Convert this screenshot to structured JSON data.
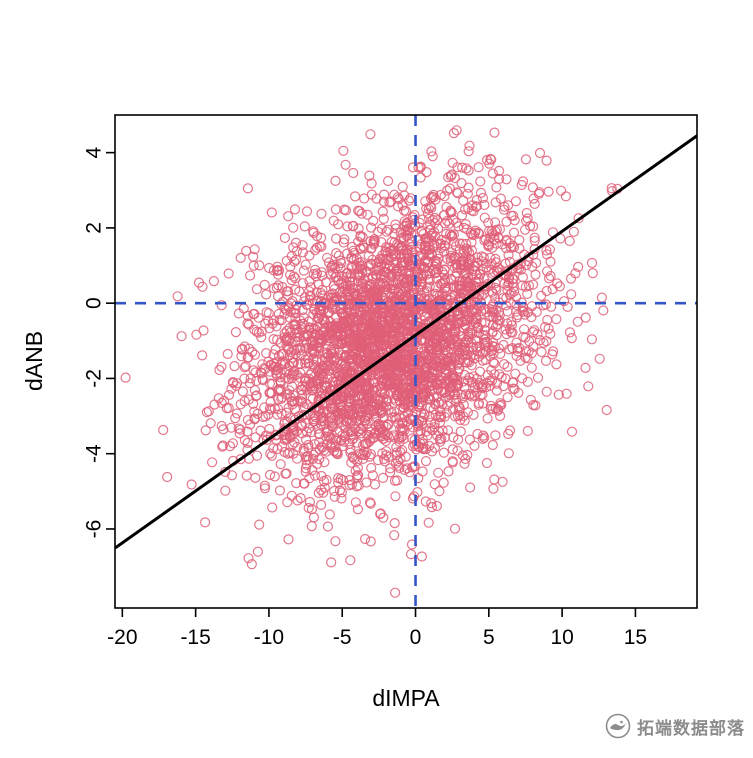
{
  "watermark": {
    "text": "拓端数据部落"
  },
  "chart_data": {
    "type": "scatter",
    "title": "",
    "xlabel": "dIMPA",
    "ylabel": "dANB",
    "xlim": [
      -20.5,
      19.2
    ],
    "ylim": [
      -8.1,
      5.0
    ],
    "x_ticks": [
      -20,
      -15,
      -10,
      -5,
      0,
      5,
      10,
      15
    ],
    "y_ticks": [
      -6,
      -4,
      -2,
      0,
      2,
      4
    ],
    "grid": false,
    "legend": "none",
    "points": {
      "n": 3600,
      "mean_x": -1.6,
      "mean_y": -1.0,
      "sd_x": 4.9,
      "sd_y": 1.8,
      "correlation": 0.28,
      "seed": 1234,
      "marker": "open-circle",
      "radius": 4.5
    },
    "regression_line": {
      "slope": 0.276,
      "intercept": -0.85
    },
    "reference_lines": {
      "horizontal_y": 0,
      "vertical_x": 0,
      "style": "dashed"
    },
    "colors": {
      "points": "#df5f78",
      "regression": "#000000",
      "reference": "#3556c8",
      "axis": "#000000",
      "background": "#ffffff"
    }
  }
}
